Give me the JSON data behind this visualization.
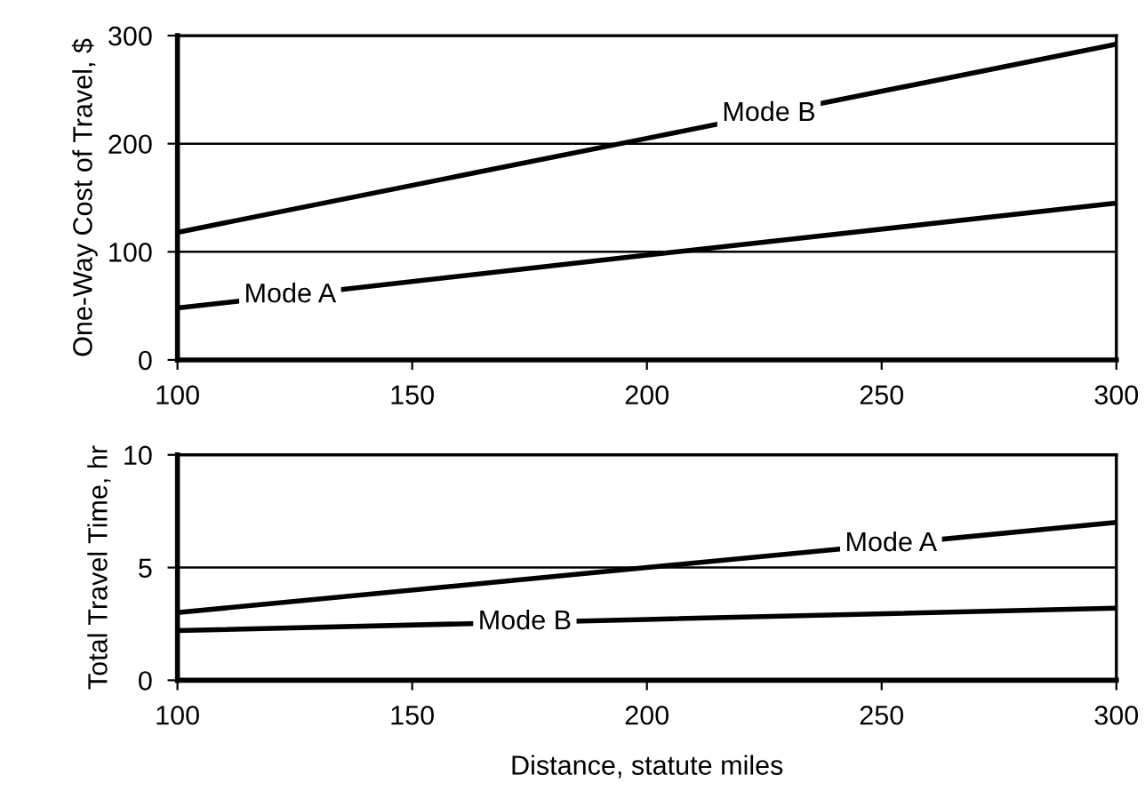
{
  "chart_data": [
    {
      "type": "line",
      "ylabel": "One-Way Cost of Travel, $",
      "x": [
        100,
        200,
        300
      ],
      "xlim": [
        100,
        300
      ],
      "xticks": [
        100,
        150,
        200,
        250,
        300
      ],
      "ylim": [
        0,
        300
      ],
      "yticks": [
        0,
        100,
        200,
        300
      ],
      "grid": "y",
      "legend": false,
      "series": [
        {
          "name": "Mode A",
          "color": "#000000",
          "values": [
            48,
            97,
            145
          ]
        },
        {
          "name": "Mode B",
          "color": "#000000",
          "values": [
            118,
            205,
            292
          ]
        }
      ]
    },
    {
      "type": "line",
      "ylabel": "Total Travel Time, hr",
      "xlabel": "Distance, statute miles",
      "x": [
        100,
        200,
        300
      ],
      "xlim": [
        100,
        300
      ],
      "xticks": [
        100,
        150,
        200,
        250,
        300
      ],
      "ylim": [
        0,
        10
      ],
      "yticks": [
        0,
        5,
        10
      ],
      "grid": "y",
      "legend": false,
      "series": [
        {
          "name": "Mode A",
          "color": "#000000",
          "values": [
            3.0,
            5.0,
            7.0
          ]
        },
        {
          "name": "Mode B",
          "color": "#000000",
          "values": [
            2.2,
            2.7,
            3.2
          ]
        }
      ]
    }
  ]
}
